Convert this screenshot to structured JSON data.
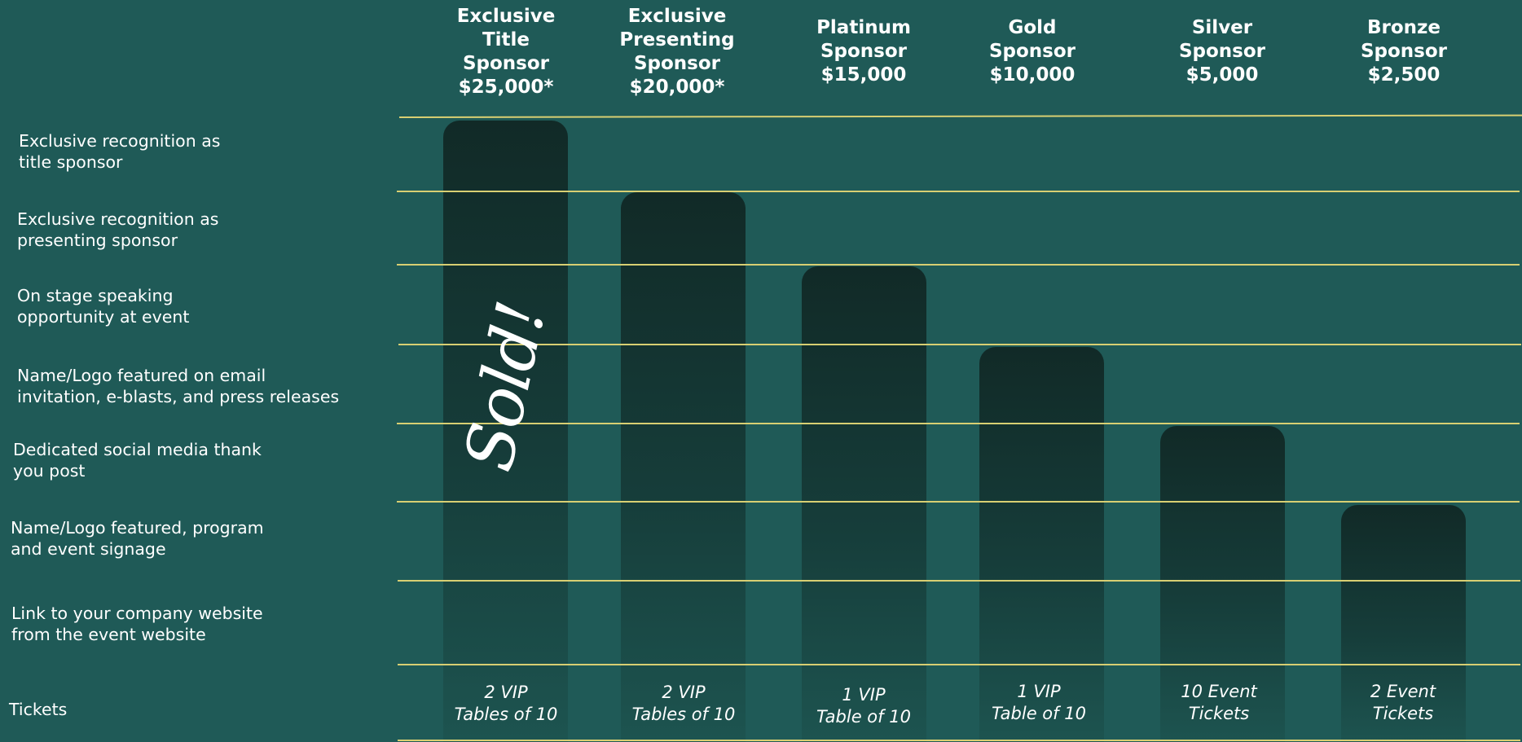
{
  "tiers": [
    {
      "name_l1": "Exclusive",
      "name_l2": "Title",
      "name_l3": "Sponsor",
      "price": "$25,000*",
      "tickets_l1": "2 VIP",
      "tickets_l2": "Tables of 10"
    },
    {
      "name_l1": "Exclusive",
      "name_l2": "Presenting",
      "name_l3": "Sponsor",
      "price": "$20,000*",
      "tickets_l1": "2 VIP",
      "tickets_l2": "Tables of 10"
    },
    {
      "name_l1": "Platinum",
      "name_l2": "Sponsor",
      "price": "$15,000",
      "tickets_l1": "1 VIP",
      "tickets_l2": "Table of 10"
    },
    {
      "name_l1": "Gold",
      "name_l2": "Sponsor",
      "price": "$10,000",
      "tickets_l1": "1 VIP",
      "tickets_l2": "Table of 10"
    },
    {
      "name_l1": "Silver",
      "name_l2": "Sponsor",
      "price": "$5,000",
      "tickets_l1": "10 Event",
      "tickets_l2": "Tickets"
    },
    {
      "name_l1": "Bronze",
      "name_l2": "Sponsor",
      "price": "$2,500",
      "tickets_l1": "2 Event",
      "tickets_l2": "Tickets"
    }
  ],
  "benefits": [
    {
      "l1": "Exclusive recognition as",
      "l2": "title sponsor"
    },
    {
      "l1": "Exclusive recognition as",
      "l2": "presenting sponsor"
    },
    {
      "l1": "On stage speaking",
      "l2": "opportunity at event"
    },
    {
      "l1": "Name/Logo featured on email",
      "l2": "invitation, e-blasts, and press releases"
    },
    {
      "l1": "Dedicated social media thank",
      "l2": "you post"
    },
    {
      "l1": "Name/Logo featured, program",
      "l2": "and event signage"
    },
    {
      "l1": "Link to your company website",
      "l2": "from the event website"
    },
    {
      "l1": "Tickets"
    }
  ],
  "sold_stamp": "Sold!",
  "colors": {
    "background": "#1f5a57",
    "column_top": "#112a27",
    "rule_line": "#d8cf72",
    "text": "#ffffff"
  }
}
